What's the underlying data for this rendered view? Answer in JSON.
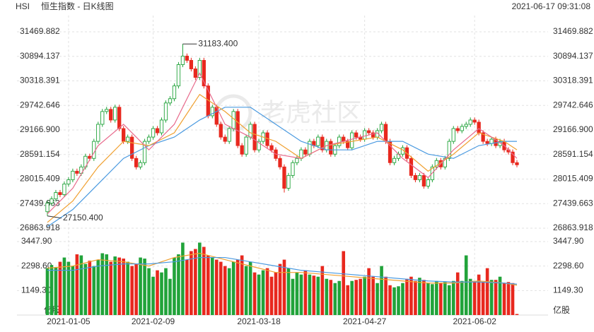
{
  "header": {
    "symbol": "HSI",
    "title": "恒生指数 - 日K线图",
    "datetime": "2021-06-17 09:31:08"
  },
  "watermark": "老虎社区",
  "chart_data": [
    {
      "type": "candlestick",
      "categories": [
        null,
        null,
        null,
        null,
        null,
        "2021-01-05",
        null,
        null,
        null,
        null,
        null,
        null,
        null,
        null,
        null,
        null,
        null,
        null,
        null,
        null,
        null,
        null,
        null,
        null,
        null,
        "2021-02-09",
        null,
        null,
        null,
        null,
        null,
        null,
        null,
        null,
        null,
        null,
        null,
        null,
        null,
        null,
        null,
        null,
        null,
        null,
        null,
        null,
        null,
        null,
        null,
        null,
        "2021-03-18",
        null,
        null,
        null,
        null,
        null,
        null,
        null,
        null,
        null,
        null,
        null,
        null,
        null,
        null,
        null,
        null,
        null,
        null,
        null,
        null,
        null,
        null,
        null,
        null,
        "2021-04-27",
        null,
        null,
        null,
        null,
        null,
        null,
        null,
        null,
        null,
        null,
        null,
        null,
        null,
        null,
        null,
        null,
        null,
        null,
        null,
        null,
        null,
        null,
        null,
        null,
        null,
        "2021-06-02",
        null,
        null,
        null,
        null,
        null,
        null,
        null,
        null,
        null,
        null
      ],
      "open": [
        27250,
        27450,
        27550,
        27700,
        27650,
        27900,
        28000,
        28200,
        28150,
        28300,
        28550,
        28500,
        28900,
        29300,
        29600,
        29650,
        29400,
        29700,
        29200,
        28900,
        29000,
        28500,
        28300,
        28400,
        28900,
        29000,
        29200,
        29100,
        29400,
        29800,
        29900,
        30200,
        30700,
        30900,
        30800,
        30600,
        30400,
        30800,
        30200,
        29500,
        29700,
        29300,
        29000,
        28900,
        29200,
        29600,
        28800,
        28600,
        29000,
        29300,
        28700,
        28900,
        29100,
        28800,
        28700,
        28500,
        28300,
        27800,
        28100,
        28400,
        28500,
        28700,
        28600,
        28900,
        28800,
        29000,
        28700,
        28900,
        28600,
        28800,
        29000,
        28900,
        28750,
        29100,
        29000,
        28950,
        29150,
        29100,
        29000,
        29150,
        29300,
        28900,
        28400,
        28500,
        28600,
        28750,
        28500,
        28100,
        28000,
        28100,
        27850,
        28000,
        28300,
        28450,
        28300,
        28500,
        28900,
        29200,
        29150,
        29250,
        29300,
        29400,
        29350,
        29100,
        28900,
        28850,
        28950,
        28800,
        28900,
        28700,
        28650,
        28400
      ],
      "high": [
        27510,
        27610,
        27760,
        27760,
        27960,
        28060,
        28260,
        28260,
        28360,
        28610,
        28610,
        28960,
        29360,
        29660,
        29710,
        29710,
        29760,
        29760,
        29260,
        29060,
        29060,
        28560,
        28460,
        28960,
        29060,
        29260,
        29260,
        29460,
        29860,
        29960,
        30260,
        30760,
        31183.4,
        30960,
        30860,
        30660,
        30860,
        30860,
        30260,
        29760,
        29760,
        29360,
        29060,
        29260,
        29660,
        29660,
        28860,
        29060,
        29360,
        29360,
        28960,
        29160,
        29160,
        28860,
        28760,
        28560,
        28360,
        28160,
        28460,
        28560,
        28760,
        28760,
        28960,
        28960,
        29060,
        29060,
        28960,
        28960,
        28860,
        29060,
        29060,
        28960,
        29160,
        29160,
        29060,
        29210,
        29210,
        29160,
        29210,
        29360,
        29360,
        28960,
        28560,
        28660,
        28810,
        28810,
        28560,
        28160,
        28160,
        28160,
        28060,
        28360,
        28510,
        28510,
        28560,
        28960,
        29260,
        29260,
        29310,
        29360,
        29460,
        29460,
        29410,
        29160,
        28960,
        29010,
        29010,
        28960,
        28960,
        28760,
        28710,
        28460
      ],
      "low": [
        27150.4,
        27390,
        27490,
        27590,
        27590,
        27840,
        27940,
        28090,
        28090,
        28240,
        28440,
        28440,
        28840,
        29240,
        29540,
        29340,
        29340,
        29140,
        28840,
        28840,
        28440,
        28240,
        28240,
        28340,
        28840,
        28940,
        29040,
        29040,
        29340,
        29740,
        29840,
        30140,
        30640,
        30740,
        30540,
        30340,
        30340,
        30140,
        29440,
        29440,
        29240,
        28940,
        28840,
        28840,
        29140,
        28740,
        28540,
        28540,
        28940,
        28640,
        28640,
        28840,
        28740,
        28640,
        28440,
        28240,
        27700,
        27740,
        28040,
        28340,
        28440,
        28540,
        28540,
        28740,
        28740,
        28640,
        28640,
        28540,
        28540,
        28740,
        28840,
        28690,
        28690,
        28940,
        28890,
        28890,
        29040,
        28940,
        28940,
        29090,
        28840,
        28340,
        28340,
        28440,
        28540,
        28440,
        28040,
        27940,
        27940,
        27790,
        27790,
        27940,
        28240,
        28240,
        28240,
        28440,
        28840,
        29090,
        29090,
        29190,
        29240,
        29290,
        29040,
        28840,
        28790,
        28790,
        28740,
        28740,
        28640,
        28590,
        28340,
        28290
      ],
      "close": [
        27450,
        27550,
        27700,
        27650,
        27900,
        28000,
        28200,
        28150,
        28300,
        28550,
        28500,
        28900,
        29300,
        29600,
        29650,
        29400,
        29700,
        29200,
        28900,
        29000,
        28500,
        28300,
        28400,
        28900,
        29000,
        29200,
        29100,
        29400,
        29800,
        29900,
        30200,
        30700,
        30900,
        30800,
        30600,
        30400,
        30800,
        30200,
        29500,
        29700,
        29300,
        29000,
        28900,
        29200,
        29600,
        28800,
        28600,
        29000,
        29300,
        28700,
        28900,
        29100,
        28800,
        28700,
        28500,
        28300,
        27800,
        28100,
        28400,
        28500,
        28700,
        28600,
        28900,
        28800,
        29000,
        28700,
        28900,
        28600,
        28800,
        29000,
        28900,
        28750,
        29100,
        29000,
        28950,
        29150,
        29100,
        29000,
        29150,
        29300,
        28900,
        28400,
        28500,
        28600,
        28750,
        28500,
        28100,
        28000,
        28100,
        27850,
        28000,
        28300,
        28450,
        28300,
        28500,
        28900,
        29200,
        29150,
        29250,
        29300,
        29400,
        29350,
        29100,
        28900,
        28850,
        28950,
        28800,
        28900,
        28700,
        28650,
        28400,
        28350
      ],
      "up_color": "#21a33a",
      "down_color": "#e8281e",
      "ylim": [
        26863.918,
        31469.882
      ],
      "yticks": [
        26863.918,
        27439.663,
        28015.409,
        28591.154,
        {
          "value": 29166.9,
          "label": "29166.900"
        },
        29742.646,
        30318.391,
        30894.137,
        31469.882
      ],
      "grid": true,
      "lines": [
        {
          "color": "#4a9ae0",
          "x": [
            0,
            6,
            12,
            18,
            24,
            30,
            36,
            42,
            48,
            54,
            60,
            66,
            72,
            78,
            84,
            90,
            96,
            102,
            108,
            111
          ],
          "values": [
            26900,
            27300,
            27900,
            28500,
            28800,
            29000,
            29400,
            29700,
            29700,
            29300,
            28900,
            28700,
            28700,
            28900,
            28900,
            28600,
            28500,
            28800,
            28900,
            28900
          ]
        },
        {
          "color": "#f0a030",
          "x": [
            0,
            6,
            12,
            18,
            24,
            30,
            36,
            42,
            48,
            54,
            60,
            66,
            72,
            78,
            84,
            90,
            96,
            102,
            108,
            111
          ],
          "values": [
            27000,
            27500,
            28300,
            28900,
            28800,
            29100,
            30000,
            29600,
            29100,
            28900,
            28500,
            28800,
            28900,
            29000,
            28700,
            28200,
            28600,
            29100,
            28900,
            28700
          ]
        },
        {
          "color": "#e86a8c",
          "x": [
            0,
            6,
            12,
            18,
            24,
            30,
            36,
            42,
            48,
            54,
            60,
            66,
            72,
            78,
            84,
            90,
            96,
            102,
            108,
            111
          ],
          "values": [
            27200,
            27800,
            28800,
            29300,
            28700,
            29300,
            30500,
            29300,
            29000,
            28600,
            28500,
            28800,
            28950,
            29100,
            28500,
            28050,
            28700,
            29200,
            28800,
            28500
          ]
        }
      ],
      "annotations": [
        {
          "x": 32,
          "value": 31183.4,
          "label": "31183.400"
        },
        {
          "x": 0,
          "value": 27150.4,
          "label": "27150.400"
        }
      ]
    },
    {
      "type": "bar",
      "unit": "亿股",
      "values": [
        2200,
        2350,
        2250,
        2500,
        2700,
        2500,
        2300,
        2850,
        2800,
        2400,
        2550,
        2300,
        2600,
        2900,
        2850,
        2500,
        2750,
        2700,
        2650,
        2500,
        2300,
        2400,
        2700,
        2650,
        2200,
        1800,
        2100,
        2000,
        2200,
        1700,
        2700,
        2850,
        3400,
        2600,
        3000,
        3100,
        3400,
        3200,
        2800,
        2700,
        2600,
        2500,
        2300,
        2200,
        2500,
        2600,
        2800,
        2300,
        2500,
        2000,
        1900,
        2100,
        2200,
        1800,
        2000,
        2400,
        2600,
        2200,
        1700,
        2000,
        1900,
        2100,
        1900,
        1850,
        1800,
        2300,
        1700,
        1650,
        1500,
        1600,
        3000,
        1400,
        1600,
        1650,
        1700,
        1800,
        2200,
        1800,
        1500,
        2300,
        1800,
        1400,
        1300,
        1350,
        1500,
        1700,
        1800,
        1600,
        1750,
        1650,
        1500,
        1450,
        1600,
        1500,
        1550,
        1400,
        1600,
        2000,
        1600,
        2800,
        1700,
        1600,
        1900,
        1550,
        2200,
        1650,
        1650,
        1800,
        1500,
        1550,
        1500,
        50
      ],
      "ylim": [
        0,
        3447.9
      ],
      "yticks": [
        {
          "value": 1149.3,
          "label": "1149.30"
        },
        {
          "value": 2298.6,
          "label": "2298.60"
        },
        {
          "value": 3447.9,
          "label": "3447.90"
        }
      ],
      "grid": true,
      "lines": [
        {
          "color": "#f0a030",
          "x": [
            0,
            6,
            12,
            18,
            24,
            30,
            36,
            42,
            48,
            54,
            60,
            66,
            72,
            78,
            84,
            90,
            96,
            102,
            108,
            111
          ],
          "values": [
            2200,
            2300,
            2600,
            2500,
            2300,
            2700,
            2900,
            2600,
            2300,
            2000,
            2000,
            1900,
            1800,
            1700,
            1600,
            1500,
            1500,
            1600,
            1500,
            1400
          ]
        },
        {
          "color": "#4a9ae0",
          "x": [
            0,
            6,
            12,
            18,
            24,
            30,
            36,
            42,
            48,
            54,
            60,
            66,
            72,
            78,
            84,
            90,
            96,
            102,
            108,
            111
          ],
          "values": [
            2100,
            2100,
            2300,
            2400,
            2400,
            2500,
            2700,
            2700,
            2500,
            2300,
            2100,
            2000,
            1900,
            1800,
            1700,
            1600,
            1550,
            1550,
            1500,
            1450
          ]
        }
      ]
    }
  ]
}
